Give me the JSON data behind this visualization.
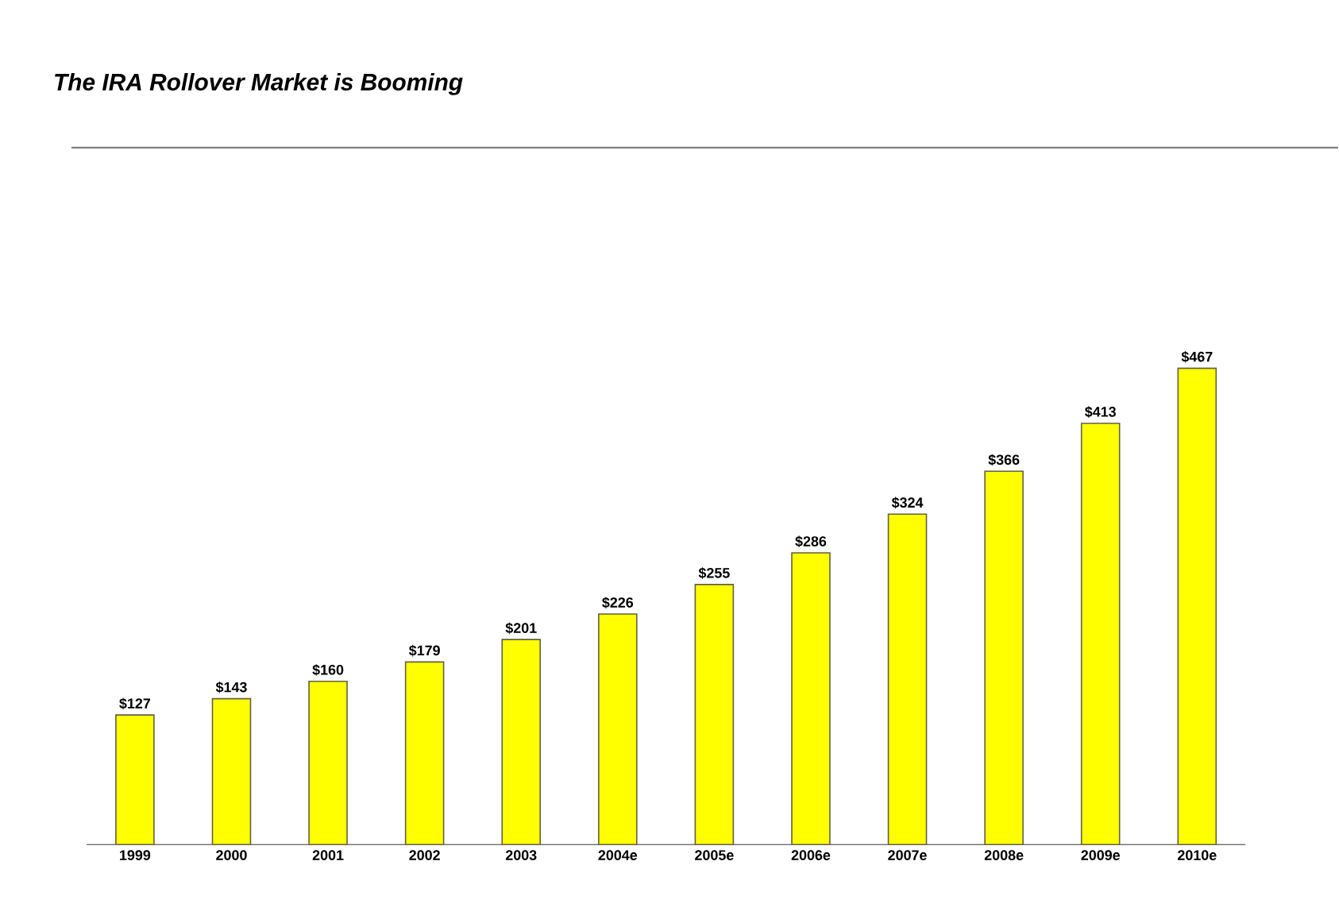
{
  "chart_data": {
    "type": "bar",
    "title": "The IRA Rollover Market is Booming",
    "categories": [
      "1999",
      "2000",
      "2001",
      "2002",
      "2003",
      "2004e",
      "2005e",
      "2006e",
      "2007e",
      "2008e",
      "2009e",
      "2010e"
    ],
    "values": [
      127,
      143,
      160,
      179,
      201,
      226,
      255,
      286,
      324,
      366,
      413,
      467
    ],
    "value_labels": [
      "$127",
      "$143",
      "$160",
      "$179",
      "$201",
      "$226",
      "$255",
      "$286",
      "$324",
      "$366",
      "$413",
      "$467"
    ],
    "color": "#ffff00",
    "tick_labels": "x"
  }
}
